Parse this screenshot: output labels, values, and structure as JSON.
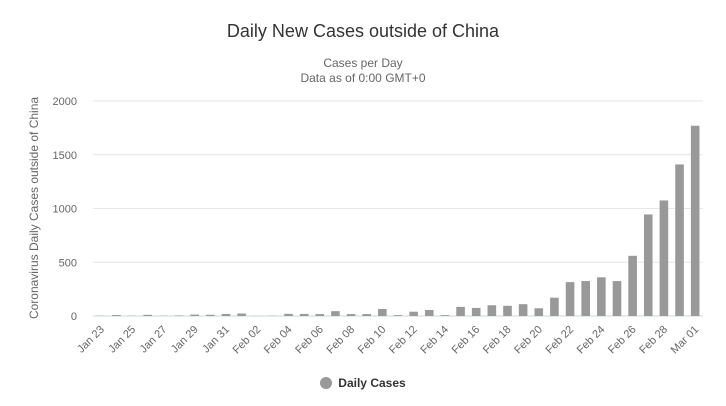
{
  "header": {
    "title": "Daily New Cases outside of China",
    "subtitle_line1": "Cases per Day",
    "subtitle_line2": "Data as of 0:00 GMT+0"
  },
  "legend": {
    "label": "Daily Cases"
  },
  "colors": {
    "bar": "#999999",
    "grid": "#e6e6e6",
    "axis": "#ccd6eb"
  },
  "chart_data": {
    "type": "bar",
    "ylabel": "Coronavirus Daily Cases outside of China",
    "ylim": [
      0,
      2000
    ],
    "yticks": [
      0,
      500,
      1000,
      1500,
      2000
    ],
    "grid": true,
    "legend_position": "bottom",
    "x_tick_labels": [
      "Jan 23",
      "Jan 25",
      "Jan 27",
      "Jan 29",
      "Jan 31",
      "Feb 02",
      "Feb 04",
      "Feb 06",
      "Feb 08",
      "Feb 10",
      "Feb 12",
      "Feb 14",
      "Feb 16",
      "Feb 18",
      "Feb 20",
      "Feb 22",
      "Feb 24",
      "Feb 26",
      "Feb 28",
      "Mar 01"
    ],
    "series": [
      {
        "name": "Daily Cases",
        "categories": [
          "Jan 23",
          "Jan 24",
          "Jan 25",
          "Jan 26",
          "Jan 27",
          "Jan 28",
          "Jan 29",
          "Jan 30",
          "Jan 31",
          "Feb 01",
          "Feb 02",
          "Feb 03",
          "Feb 04",
          "Feb 05",
          "Feb 06",
          "Feb 07",
          "Feb 08",
          "Feb 09",
          "Feb 10",
          "Feb 11",
          "Feb 12",
          "Feb 13",
          "Feb 14",
          "Feb 15",
          "Feb 16",
          "Feb 17",
          "Feb 18",
          "Feb 19",
          "Feb 20",
          "Feb 21",
          "Feb 22",
          "Feb 23",
          "Feb 24",
          "Feb 25",
          "Feb 26",
          "Feb 27",
          "Feb 28",
          "Feb 29",
          "Mar 01"
        ],
        "values": [
          2,
          9,
          2,
          11,
          2,
          5,
          13,
          11,
          19,
          23,
          1,
          2,
          20,
          19,
          18,
          45,
          18,
          18,
          65,
          8,
          40,
          56,
          8,
          85,
          75,
          100,
          95,
          110,
          72,
          170,
          315,
          325,
          360,
          325,
          560,
          945,
          1075,
          1410,
          1770
        ]
      }
    ]
  }
}
